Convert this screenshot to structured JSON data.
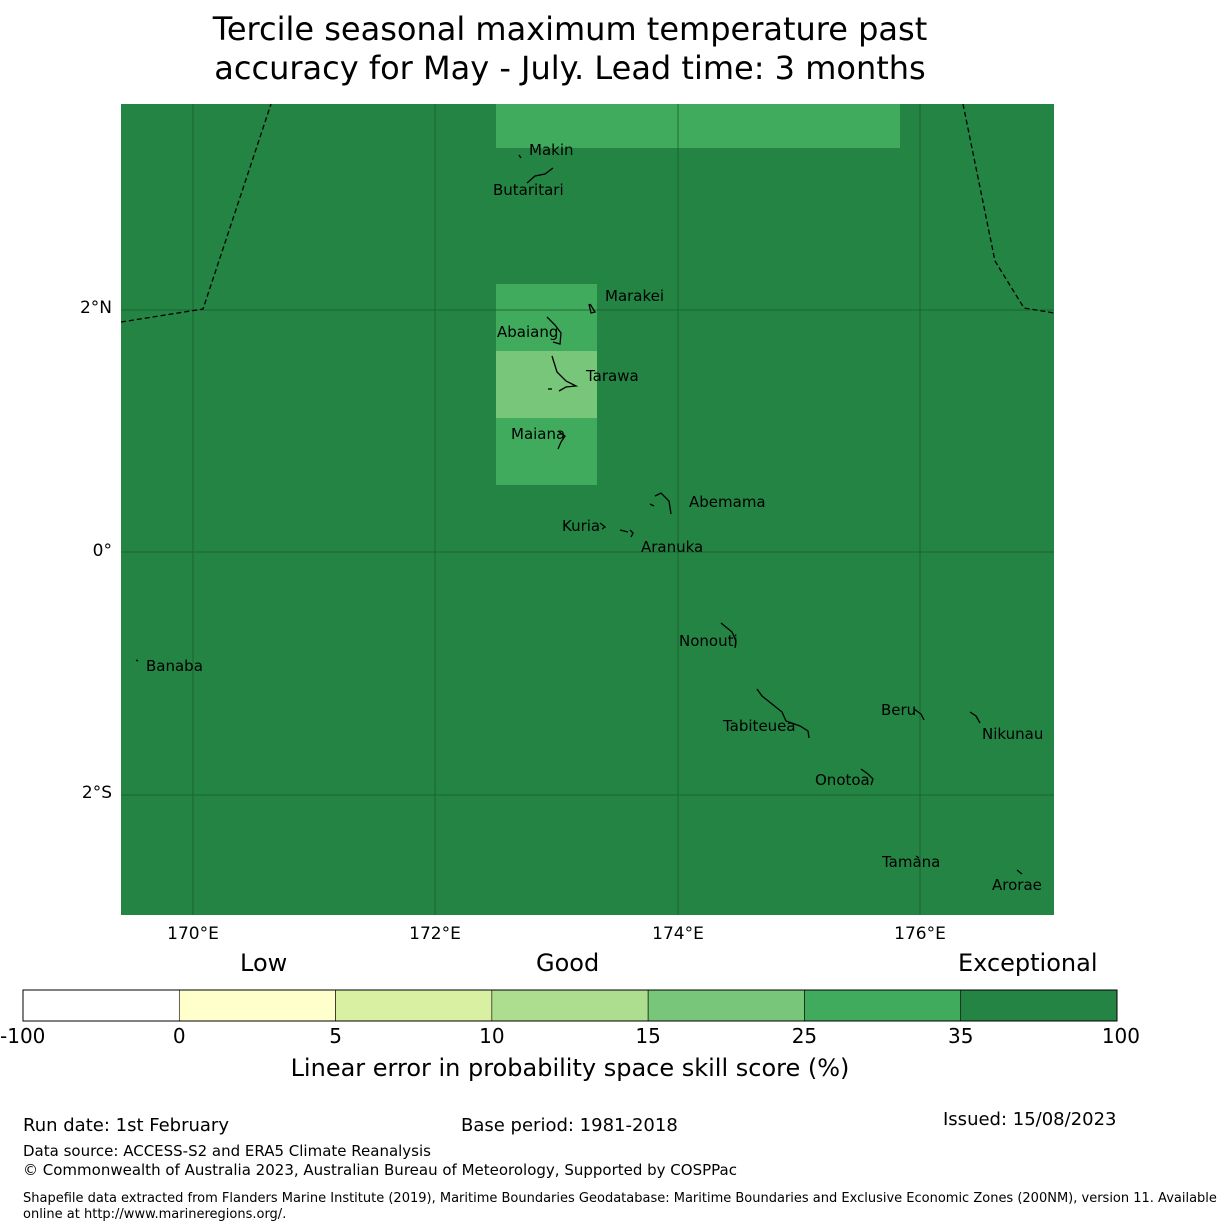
{
  "title": {
    "line1": "Tercile seasonal maximum temperature past",
    "line2": "accuracy for May - July. Lead time: 3 months"
  },
  "map": {
    "lon_range": [
      169.4,
      177.1
    ],
    "lat_range": [
      -2.95,
      3.7
    ],
    "lat_labels": [
      "2°N",
      "0°",
      "2°S"
    ],
    "lon_labels": [
      "170°E",
      "172°E",
      "174°E",
      "176°E"
    ],
    "place_names": [
      "Makin",
      "Butaritari",
      "Marakei",
      "Abaiang",
      "Tarawa",
      "Maiana",
      "Abemama",
      "Kuria",
      "Aranuka",
      "Nonouti",
      "Banaba",
      "Tabiteuea",
      "Beru",
      "Nikunau",
      "Onotoa",
      "Tamana",
      "Arorae"
    ],
    "background_skill_class": "35 to 100",
    "highlight_cells": [
      {
        "lon": [
          172.5,
          175.8
        ],
        "lat": [
          3.35,
          3.7
        ],
        "class": "25 to 35"
      },
      {
        "lon": [
          172.5,
          173.33
        ],
        "lat": [
          1.67,
          2.22
        ],
        "class": "25 to 35"
      },
      {
        "lon": [
          172.5,
          173.33
        ],
        "lat": [
          1.11,
          1.67
        ],
        "class": "15 to 25"
      },
      {
        "lon": [
          172.5,
          173.33
        ],
        "lat": [
          0.55,
          1.11
        ],
        "class": "25 to 35"
      }
    ]
  },
  "colorbar": {
    "category_labels": {
      "low": "Low",
      "good": "Good",
      "exceptional": "Exceptional"
    },
    "ticks": [
      "-100",
      "0",
      "5",
      "10",
      "15",
      "25",
      "35",
      "100"
    ],
    "colors": [
      "#ffffff",
      "#ffffcc",
      "#d9f0a3",
      "#addd8e",
      "#78c679",
      "#41ab5d",
      "#238443"
    ],
    "title": "Linear error in probability space skill score (%)"
  },
  "footer": {
    "run_date": "Run date: 1st February",
    "base_period": "Base period: 1981-2018",
    "issued": "Issued: 15/08/2023",
    "data_source": "Data source: ACCESS-S2 and ERA5 Climate Reanalysis",
    "copyright": "© Commonwealth of Australia 2023, Australian Bureau of Meteorology, Supported by COSPPac",
    "shapefile_line1": "Shapefile data extracted from Flanders Marine Institute (2019), Maritime Boundaries Geodatabase: Maritime Boundaries and Exclusive Economic Zones (200NM), version 11. Available",
    "shapefile_line2": "online at http://www.marineregions.org/."
  }
}
